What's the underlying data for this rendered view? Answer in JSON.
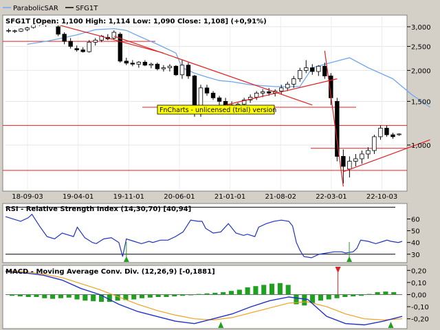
{
  "legend": {
    "items": [
      {
        "label": "ParabolicSAR",
        "color": "#6fa8f0"
      },
      {
        "label": "SFG1T",
        "color": "#000000"
      }
    ]
  },
  "watermark": "FnCharts - unlicensed (trial) version",
  "price_panel": {
    "header": "SFG1T [Open: 1,100  High: 1,114  Low: 1,090  Close: 1,108] (+0,91%)",
    "y_ticks": [
      "3,000",
      "2,500",
      "2,000",
      "1,500",
      "1,000"
    ],
    "x_ticks": [
      "18-09-03",
      "19-04-01",
      "19-11-01",
      "20-06-01",
      "21-01-01",
      "21-08-02",
      "22-03-01",
      "22-10-03"
    ]
  },
  "rsi_panel": {
    "header": "RSI - Relative Strength Index (14,30,70) [40,94]",
    "y_ticks": [
      "60",
      "50",
      "40",
      "30"
    ]
  },
  "macd_panel": {
    "header": "MACD - Moving Average Conv. Div. (12,26,9) [-0,1881]",
    "y_ticks": [
      "0,20",
      "0,10",
      "0,00",
      "-0,10",
      "-0,20"
    ]
  },
  "chart_data": [
    {
      "type": "candlestick",
      "title": "SFG1T",
      "scale": "log",
      "ylim": [
        0.66,
        3.3
      ],
      "x_ticks": [
        "18-09-03",
        "19-04-01",
        "19-11-01",
        "20-06-01",
        "21-01-01",
        "21-08-02",
        "22-03-01",
        "22-10-03"
      ],
      "y_ticks": [
        3.0,
        2.5,
        2.0,
        1.5,
        1.0
      ],
      "last": {
        "open": 1.1,
        "high": 1.114,
        "low": 1.09,
        "close": 1.108,
        "change_pct": 0.91
      },
      "candles_ohlc": [
        [
          2.9,
          2.95,
          2.84,
          2.9
        ],
        [
          2.87,
          2.92,
          2.83,
          2.89
        ],
        [
          2.88,
          2.96,
          2.86,
          2.94
        ],
        [
          2.92,
          3.0,
          2.88,
          2.97
        ],
        [
          2.98,
          3.1,
          2.95,
          3.05
        ],
        [
          3.05,
          3.25,
          3.02,
          3.2
        ],
        [
          3.05,
          3.2,
          3.0,
          3.15
        ],
        [
          3.15,
          3.25,
          3.05,
          3.08
        ],
        [
          3.0,
          3.05,
          2.75,
          2.8
        ],
        [
          2.8,
          2.85,
          2.55,
          2.62
        ],
        [
          2.62,
          2.7,
          2.45,
          2.5
        ],
        [
          2.45,
          2.52,
          2.38,
          2.42
        ],
        [
          2.42,
          2.48,
          2.36,
          2.38
        ],
        [
          2.38,
          2.65,
          2.36,
          2.6
        ],
        [
          2.6,
          2.7,
          2.52,
          2.65
        ],
        [
          2.65,
          2.78,
          2.6,
          2.75
        ],
        [
          2.72,
          2.8,
          2.65,
          2.68
        ],
        [
          2.7,
          2.9,
          2.65,
          2.85
        ],
        [
          2.8,
          2.85,
          2.15,
          2.18
        ],
        [
          2.18,
          2.25,
          2.1,
          2.14
        ],
        [
          2.14,
          2.2,
          2.08,
          2.12
        ],
        [
          2.12,
          2.18,
          2.05,
          2.16
        ],
        [
          2.16,
          2.2,
          2.08,
          2.1
        ],
        [
          2.1,
          2.15,
          2.04,
          2.12
        ],
        [
          2.12,
          2.15,
          2.0,
          2.03
        ],
        [
          2.03,
          2.1,
          1.98,
          2.05
        ],
        [
          2.05,
          2.12,
          1.98,
          2.08
        ],
        [
          2.08,
          2.1,
          1.9,
          1.92
        ],
        [
          1.92,
          2.2,
          1.85,
          2.1
        ],
        [
          2.1,
          2.15,
          1.85,
          1.9
        ],
        [
          1.9,
          1.92,
          1.3,
          1.35
        ],
        [
          1.35,
          1.75,
          1.3,
          1.7
        ],
        [
          1.7,
          1.75,
          1.58,
          1.62
        ],
        [
          1.62,
          1.65,
          1.52,
          1.55
        ],
        [
          1.55,
          1.58,
          1.45,
          1.5
        ],
        [
          1.5,
          1.55,
          1.42,
          1.45
        ],
        [
          1.45,
          1.5,
          1.4,
          1.42
        ],
        [
          1.42,
          1.48,
          1.38,
          1.46
        ],
        [
          1.46,
          1.55,
          1.42,
          1.52
        ],
        [
          1.52,
          1.6,
          1.48,
          1.56
        ],
        [
          1.56,
          1.65,
          1.52,
          1.62
        ],
        [
          1.62,
          1.68,
          1.56,
          1.64
        ],
        [
          1.64,
          1.7,
          1.58,
          1.62
        ],
        [
          1.62,
          1.68,
          1.57,
          1.65
        ],
        [
          1.65,
          1.75,
          1.6,
          1.7
        ],
        [
          1.7,
          1.8,
          1.65,
          1.76
        ],
        [
          1.76,
          1.9,
          1.7,
          1.85
        ],
        [
          1.85,
          2.05,
          1.8,
          2.0
        ],
        [
          2.0,
          2.2,
          1.95,
          2.05
        ],
        [
          2.05,
          2.12,
          1.92,
          1.98
        ],
        [
          1.98,
          2.1,
          1.9,
          2.08
        ],
        [
          2.08,
          2.15,
          1.85,
          1.9
        ],
        [
          1.9,
          1.95,
          1.45,
          1.55
        ],
        [
          1.5,
          1.55,
          0.86,
          0.9
        ],
        [
          0.9,
          0.96,
          0.7,
          0.82
        ],
        [
          0.8,
          0.9,
          0.74,
          0.86
        ],
        [
          0.86,
          0.92,
          0.82,
          0.88
        ],
        [
          0.88,
          0.95,
          0.84,
          0.92
        ],
        [
          0.92,
          0.98,
          0.88,
          0.95
        ],
        [
          0.95,
          1.1,
          0.92,
          1.08
        ],
        [
          1.08,
          1.2,
          1.05,
          1.17
        ],
        [
          1.17,
          1.2,
          1.08,
          1.1
        ],
        [
          1.1,
          1.12,
          1.06,
          1.08
        ],
        [
          1.1,
          1.114,
          1.09,
          1.108
        ]
      ],
      "parabolic_sar": [
        [
          3,
          2.55
        ],
        [
          6,
          2.62
        ],
        [
          8,
          2.68
        ],
        [
          11,
          2.78
        ],
        [
          14,
          2.92
        ],
        [
          17,
          2.95
        ],
        [
          19,
          2.9
        ],
        [
          21,
          2.75
        ],
        [
          24,
          2.55
        ],
        [
          27,
          2.35
        ],
        [
          28,
          2.05
        ],
        [
          30,
          1.95
        ],
        [
          32,
          1.88
        ],
        [
          34,
          1.82
        ],
        [
          36,
          1.8
        ],
        [
          39,
          1.75
        ],
        [
          43,
          1.72
        ],
        [
          47,
          1.72
        ],
        [
          49,
          2.05
        ],
        [
          52,
          2.15
        ],
        [
          55,
          2.25
        ],
        [
          58,
          2.05
        ],
        [
          62,
          1.85
        ],
        [
          65,
          1.6
        ],
        [
          68,
          1.42
        ]
      ],
      "support_resistance_lines": [
        2.62,
        1.42,
        1.2,
        0.97,
        0.79
      ],
      "trend_lines": [
        {
          "from": [
            5,
            3.2
          ],
          "to": [
            25,
            2.35
          ]
        },
        {
          "from": [
            17,
            2.75
          ],
          "to": [
            49,
            1.45
          ]
        },
        {
          "from": [
            35,
            1.45
          ],
          "to": [
            53,
            1.85
          ]
        },
        {
          "from": [
            51,
            2.4
          ],
          "to": [
            54,
            0.68
          ]
        },
        {
          "from": [
            54,
            0.78
          ],
          "to": [
            68,
            1.05
          ]
        }
      ]
    },
    {
      "type": "line",
      "title": "RSI - Relative Strength Index (14,30,70)",
      "last_value": 40.94,
      "ylim": [
        24,
        72
      ],
      "y_ticks": [
        60,
        50,
        40,
        30
      ],
      "reference_levels": [
        30,
        70
      ],
      "values": [
        [
          0,
          62
        ],
        [
          4,
          58
        ],
        [
          6,
          61
        ],
        [
          7,
          64
        ],
        [
          9,
          54
        ],
        [
          11,
          45
        ],
        [
          13,
          43
        ],
        [
          15,
          48
        ],
        [
          16,
          47
        ],
        [
          18,
          45
        ],
        [
          19,
          53
        ],
        [
          21,
          44
        ],
        [
          23,
          40
        ],
        [
          24,
          39
        ],
        [
          26,
          43
        ],
        [
          28,
          44
        ],
        [
          30,
          40
        ],
        [
          31,
          28
        ],
        [
          32,
          43
        ],
        [
          34,
          41
        ],
        [
          36,
          39
        ],
        [
          38,
          41
        ],
        [
          39,
          40
        ],
        [
          41,
          42
        ],
        [
          43,
          42
        ],
        [
          45,
          45
        ],
        [
          47,
          49
        ],
        [
          49,
          59
        ],
        [
          51,
          58
        ],
        [
          52,
          58
        ],
        [
          53,
          52
        ],
        [
          55,
          48
        ],
        [
          57,
          49
        ],
        [
          59,
          56
        ],
        [
          61,
          48
        ],
        [
          63,
          46
        ],
        [
          64,
          47
        ],
        [
          66,
          45
        ],
        [
          67,
          53
        ],
        [
          69,
          56
        ],
        [
          71,
          58
        ],
        [
          73,
          59
        ],
        [
          75,
          58
        ],
        [
          76,
          54
        ],
        [
          77,
          40
        ],
        [
          78,
          33
        ],
        [
          79,
          28
        ],
        [
          81,
          27
        ],
        [
          83,
          30
        ],
        [
          85,
          31
        ],
        [
          87,
          32
        ],
        [
          89,
          32
        ],
        [
          90,
          31
        ],
        [
          92,
          32
        ],
        [
          93,
          35
        ],
        [
          94,
          42
        ],
        [
          96,
          41
        ],
        [
          98,
          39
        ],
        [
          100,
          41
        ],
        [
          101,
          42
        ],
        [
          102,
          41
        ],
        [
          104,
          40
        ],
        [
          105,
          41
        ]
      ],
      "signals": [
        {
          "x": 32,
          "type": "buy"
        },
        {
          "x": 91,
          "type": "buy"
        }
      ]
    },
    {
      "type": "bar",
      "title": "MACD - Moving Average Conv. Div. (12,26,9)",
      "last_value": -0.1881,
      "ylim": [
        -0.27,
        0.23
      ],
      "y_ticks": [
        0.2,
        0.1,
        0.0,
        -0.1,
        -0.2
      ],
      "histogram": [
        -0.01,
        -0.015,
        -0.02,
        -0.02,
        -0.03,
        -0.035,
        -0.03,
        -0.025,
        -0.04,
        -0.05,
        -0.055,
        -0.06,
        -0.06,
        -0.05,
        -0.045,
        -0.04,
        -0.03,
        -0.025,
        -0.02,
        -0.02,
        -0.015,
        -0.01,
        -0.005,
        0.005,
        0.01,
        0.015,
        0.02,
        0.03,
        0.04,
        0.06,
        0.07,
        0.08,
        0.09,
        0.095,
        0.08,
        -0.08,
        -0.09,
        -0.07,
        -0.05,
        -0.04,
        -0.03,
        -0.02,
        -0.015,
        -0.01,
        0.005,
        0.02,
        0.025,
        0.02
      ],
      "macd_line": [
        [
          0,
          0.19
        ],
        [
          5,
          0.18
        ],
        [
          10,
          0.16
        ],
        [
          15,
          0.12
        ],
        [
          20,
          0.05
        ],
        [
          25,
          0.0
        ],
        [
          30,
          -0.08
        ],
        [
          35,
          -0.14
        ],
        [
          40,
          -0.18
        ],
        [
          45,
          -0.22
        ],
        [
          50,
          -0.24
        ],
        [
          55,
          -0.2
        ],
        [
          60,
          -0.16
        ],
        [
          65,
          -0.1
        ],
        [
          70,
          -0.05
        ],
        [
          75,
          -0.02
        ],
        [
          80,
          -0.04
        ],
        [
          85,
          -0.18
        ],
        [
          90,
          -0.24
        ],
        [
          95,
          -0.25
        ],
        [
          100,
          -0.22
        ],
        [
          105,
          -0.18
        ]
      ],
      "signal_line": [
        [
          0,
          0.2
        ],
        [
          5,
          0.19
        ],
        [
          10,
          0.17
        ],
        [
          15,
          0.14
        ],
        [
          20,
          0.09
        ],
        [
          25,
          0.04
        ],
        [
          30,
          -0.02
        ],
        [
          35,
          -0.08
        ],
        [
          40,
          -0.13
        ],
        [
          45,
          -0.17
        ],
        [
          50,
          -0.2
        ],
        [
          55,
          -0.21
        ],
        [
          60,
          -0.19
        ],
        [
          65,
          -0.15
        ],
        [
          70,
          -0.11
        ],
        [
          75,
          -0.07
        ],
        [
          80,
          -0.06
        ],
        [
          85,
          -0.1
        ],
        [
          90,
          -0.16
        ],
        [
          95,
          -0.2
        ],
        [
          100,
          -0.21
        ],
        [
          105,
          -0.2
        ]
      ],
      "signals": [
        {
          "x": 57,
          "type": "buy"
        },
        {
          "x": 88,
          "type": "sell"
        },
        {
          "x": 102,
          "type": "buy"
        }
      ]
    }
  ],
  "colors": {
    "up_candle": "#ffffff",
    "down_candle": "#000000",
    "sar": "#6fa8f0",
    "trend": "#e02020",
    "rsi": "#2030c8",
    "macd": "#2030c8",
    "macd_signal": "#f0a020",
    "hist": "#20a020",
    "buy_arrow": "#20a020",
    "sell_arrow": "#e02020",
    "watermark_bg": "#ffff00"
  }
}
